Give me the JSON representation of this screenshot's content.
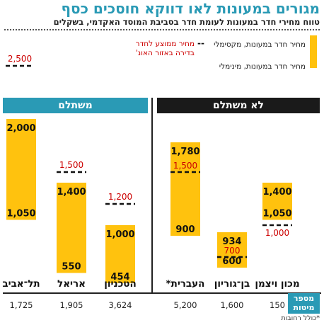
{
  "title": "מגורים במעונות לאו דווקא חוסכים כסף",
  "subtitle": "טווח מחירי חדר במעונות לעומת חדר בסביבת המוסד האקדמי, בשקלים",
  "legend": {
    "max_label": "מחיר חדר במעונות, מקסימלי",
    "min_label": "מחיר חדר במעונות, מינימלי",
    "avg_label_line1": "מחיר ממוצע לחדר",
    "avg_label_line2": "בדירה באזור האונ'",
    "max_marker": "–",
    "avg_marker": "--"
  },
  "group_headers": {
    "paid": "משתלם",
    "not_paid": "לא משתלם"
  },
  "count_badge": "מספר\nמיטות",
  "footnote": "*כולל רחובות",
  "colors": {
    "bar": "#ffc20e",
    "accent": "#2a9ab5",
    "dark": "#1a1a1a",
    "avg_text": "#cc0000"
  },
  "chart_data": {
    "type": "bar",
    "subtype": "floating-range",
    "ylim": [
      0,
      2500
    ],
    "categories": [
      "תל־אביב",
      "אריאל",
      "הטכניון",
      "העברית*",
      "בן־גוריון",
      "מכון ויצמן"
    ],
    "beds": [
      "1,725",
      "1,905",
      "3,624",
      "5,200",
      "1,600",
      "150"
    ],
    "groups": [
      "משתלם",
      "משתלם",
      "משתלם",
      "לא משתלם",
      "לא משתלם",
      "לא משתלם"
    ],
    "series": [
      {
        "name": "מחיר חדר במעונות, מינימלי",
        "values": [
          1050,
          550,
          454,
          900,
          600,
          1050
        ]
      },
      {
        "name": "מחיר חדר במעונות, מקסימלי",
        "values": [
          2000,
          1400,
          1000,
          1780,
          934,
          1400
        ]
      },
      {
        "name": "מחיר ממוצע לחדר בדירה באזור האונ'",
        "values": [
          2500,
          1500,
          1200,
          1500,
          700,
          1000
        ]
      }
    ],
    "min_labels": [
      "1,050",
      "550",
      "454",
      "900",
      "600",
      "1,050"
    ],
    "max_labels": [
      "2,000",
      "1,400",
      "1,000",
      "1,780",
      "934",
      "1,400"
    ],
    "avg_labels": [
      "2,500",
      "1,500",
      "1,200",
      "1,500",
      "700",
      "1,000"
    ],
    "grid": false
  }
}
